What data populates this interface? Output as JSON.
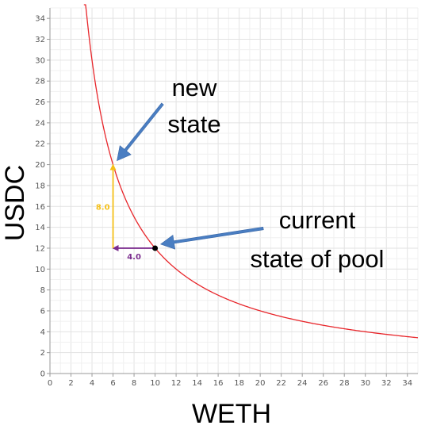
{
  "chart_data": {
    "type": "line",
    "title": "",
    "xlabel": "WETH",
    "ylabel": "USDC",
    "xlim": [
      0,
      35
    ],
    "ylim": [
      0,
      35
    ],
    "xticks": [
      0,
      2,
      4,
      6,
      8,
      10,
      12,
      14,
      16,
      18,
      20,
      22,
      24,
      26,
      28,
      30,
      32,
      34
    ],
    "yticks": [
      0,
      2,
      4,
      6,
      8,
      10,
      12,
      14,
      16,
      18,
      20,
      22,
      24,
      26,
      28,
      30,
      32,
      34
    ],
    "grid": true,
    "curve": {
      "function": "x*y=k",
      "k": 120,
      "color": "#e8262b"
    },
    "points": [
      {
        "x": 10,
        "y": 12,
        "color": "#000000"
      }
    ],
    "deltas": [
      {
        "from": [
          10,
          12
        ],
        "to": [
          6,
          12
        ],
        "label": "4.0",
        "color": "#7b2d8e"
      },
      {
        "from": [
          6,
          12
        ],
        "to": [
          6,
          20
        ],
        "label": "8.0",
        "color": "#f5c018"
      }
    ],
    "annotations": [
      {
        "lines": [
          "new",
          "state"
        ],
        "points_to": [
          6,
          20
        ]
      },
      {
        "lines": [
          "current",
          "state of pool"
        ],
        "points_to": [
          10,
          12
        ]
      }
    ],
    "arrow_color": "#4a7ec2"
  }
}
